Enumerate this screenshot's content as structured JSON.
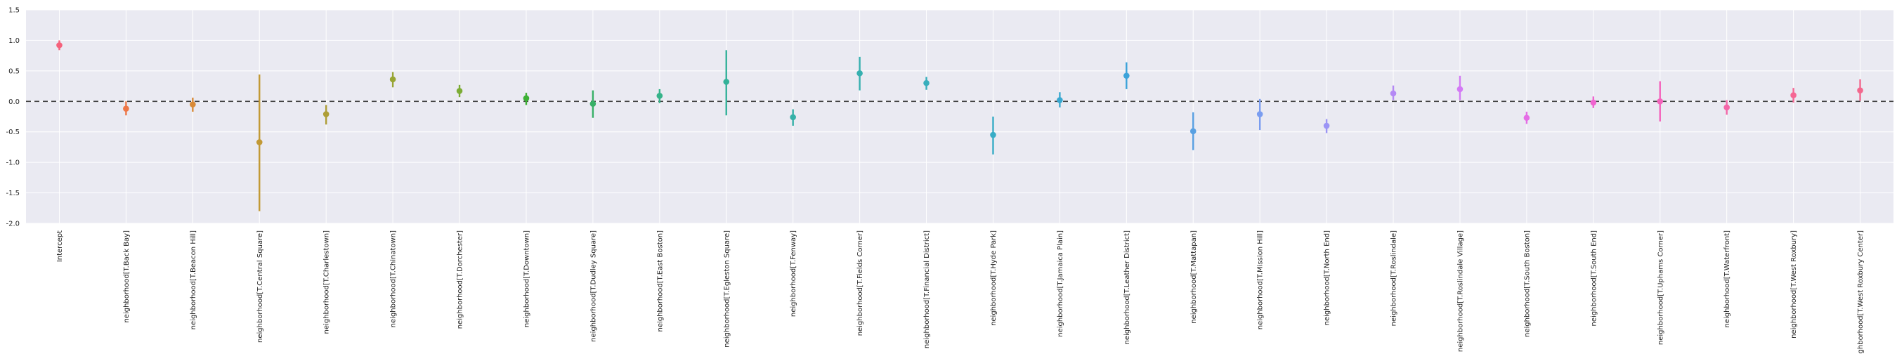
{
  "chart_data": {
    "type": "scatter",
    "title": "",
    "xlabel": "",
    "ylabel": "",
    "ylim": [
      -2.0,
      1.5
    ],
    "yticks": [
      "-2.0",
      "-1.5",
      "-1.0",
      "-0.5",
      "0.0",
      "0.5",
      "1.0",
      "1.5"
    ],
    "grid": true,
    "reference_line": 0.0,
    "categories": [
      "Intercept",
      "neighborhood[T.Back Bay]",
      "neighborhood[T.Beacon Hill]",
      "neighborhood[T.Central Square]",
      "neighborhood[T.Charlestown]",
      "neighborhood[T.Chinatown]",
      "neighborhood[T.Dorchester]",
      "neighborhood[T.Downtown]",
      "neighborhood[T.Dudley Square]",
      "neighborhood[T.East Boston]",
      "neighborhood[T.Egleston Square]",
      "neighborhood[T.Fenway]",
      "neighborhood[T.Fields Corner]",
      "neighborhood[T.Financial District]",
      "neighborhood[T.Hyde Park]",
      "neighborhood[T.Jamaica Plain]",
      "neighborhood[T.Leather District]",
      "neighborhood[T.Mattapan]",
      "neighborhood[T.Mission Hill]",
      "neighborhood[T.North End]",
      "neighborhood[T.Roslindale]",
      "neighborhood[T.Roslindale Village]",
      "neighborhood[T.South Boston]",
      "neighborhood[T.South End]",
      "neighborhood[T.Uphams Corner]",
      "neighborhood[T.Waterfront]",
      "neighborhood[T.West Roxbury]",
      "neighborhood[T.West Roxbury Center]"
    ],
    "values": [
      0.92,
      -0.12,
      -0.05,
      -0.67,
      -0.21,
      0.36,
      0.17,
      0.05,
      -0.04,
      0.09,
      0.32,
      -0.26,
      0.46,
      0.3,
      -0.55,
      0.02,
      0.42,
      -0.49,
      -0.21,
      -0.4,
      0.13,
      0.2,
      -0.27,
      -0.02,
      0.0,
      -0.1,
      0.1,
      0.18
    ],
    "lower": [
      0.84,
      -0.23,
      -0.17,
      -1.8,
      -0.38,
      0.23,
      0.07,
      -0.06,
      -0.27,
      -0.03,
      -0.23,
      -0.4,
      0.18,
      0.19,
      -0.87,
      -0.1,
      0.2,
      -0.8,
      -0.47,
      -0.52,
      0.02,
      0.02,
      -0.37,
      -0.11,
      -0.33,
      -0.22,
      -0.02,
      0.01
    ],
    "upper": [
      1.0,
      0.0,
      0.06,
      0.44,
      -0.06,
      0.48,
      0.27,
      0.14,
      0.18,
      0.2,
      0.84,
      -0.13,
      0.73,
      0.4,
      -0.25,
      0.15,
      0.64,
      -0.18,
      0.04,
      -0.29,
      0.26,
      0.42,
      -0.17,
      0.08,
      0.33,
      0.02,
      0.22,
      0.36
    ],
    "colors": [
      "#f5617b",
      "#ee7747",
      "#d98a37",
      "#c29935",
      "#ae9e37",
      "#98a534",
      "#7cac35",
      "#3cb034",
      "#38b067",
      "#36b38a",
      "#33b299",
      "#35b1a8",
      "#36b0b0",
      "#37aebc",
      "#38acc6",
      "#3aa8d0",
      "#3ca3da",
      "#58a0e2",
      "#7a9df0",
      "#9b94f5",
      "#b489f5",
      "#d37af5",
      "#e56de6",
      "#f064d0",
      "#f464bc",
      "#f466a8",
      "#f56794",
      "#f3688e"
    ],
    "background_color": "#eaeaf2"
  }
}
